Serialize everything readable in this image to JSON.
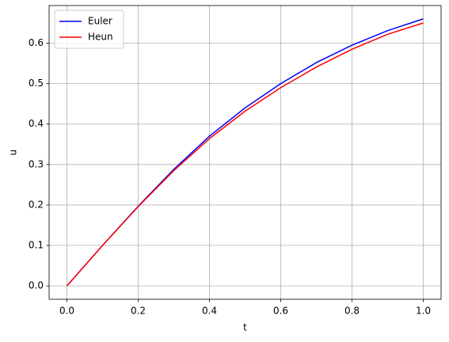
{
  "chart_data": {
    "type": "line",
    "xlabel": "t",
    "ylabel": "u",
    "x": [
      0,
      0.1,
      0.2,
      0.3,
      0.4,
      0.5,
      0.6,
      0.7,
      0.8,
      0.9,
      1.0
    ],
    "series": [
      {
        "name": "Euler",
        "color": "#0000ff",
        "values": [
          0,
          0.1,
          0.197,
          0.288,
          0.37,
          0.44,
          0.5,
          0.552,
          0.595,
          0.631,
          0.66
        ]
      },
      {
        "name": "Heun",
        "color": "#ff0000",
        "values": [
          0,
          0.1,
          0.196,
          0.285,
          0.364,
          0.432,
          0.49,
          0.541,
          0.585,
          0.622,
          0.65
        ]
      }
    ],
    "xlim": [
      -0.05,
      1.05
    ],
    "ylim": [
      -0.033,
      0.693
    ],
    "xticks": [
      {
        "value": 0,
        "label": "0.0"
      },
      {
        "value": 0.2,
        "label": "0.2"
      },
      {
        "value": 0.4,
        "label": "0.4"
      },
      {
        "value": 0.6,
        "label": "0.6"
      },
      {
        "value": 0.8,
        "label": "0.8"
      },
      {
        "value": 1.0,
        "label": "1.0"
      }
    ],
    "yticks": [
      {
        "value": 0,
        "label": "0.0"
      },
      {
        "value": 0.1,
        "label": "0.1"
      },
      {
        "value": 0.2,
        "label": "0.2"
      },
      {
        "value": 0.3,
        "label": "0.3"
      },
      {
        "value": 0.4,
        "label": "0.4"
      },
      {
        "value": 0.5,
        "label": "0.5"
      },
      {
        "value": 0.6,
        "label": "0.6"
      }
    ],
    "grid": true,
    "legend": "upper-left"
  }
}
